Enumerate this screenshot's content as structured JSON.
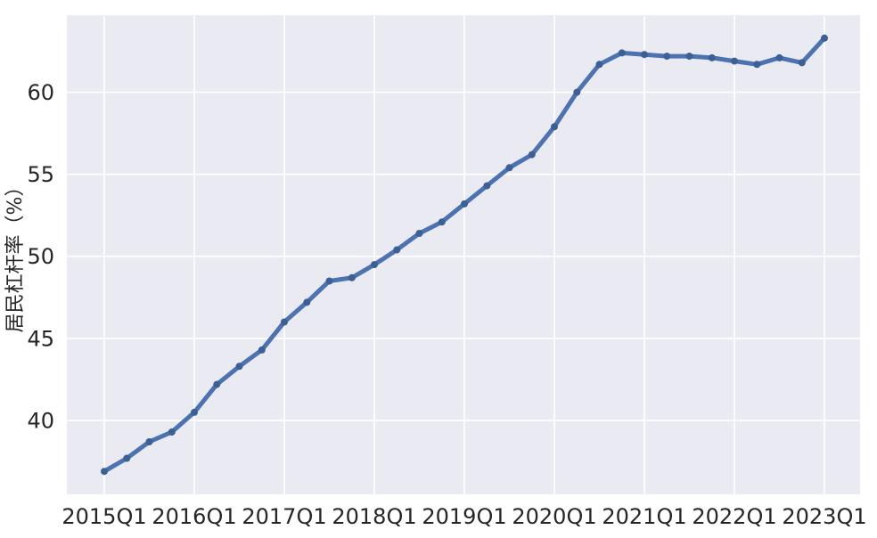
{
  "figure": {
    "background": "#ffffff",
    "plot_background": "#eaeaf2",
    "grid_color": "#ffffff",
    "text_color": "#262626"
  },
  "chart_data": {
    "type": "line",
    "title": "",
    "xlabel": "",
    "ylabel": "居民杠杆率（%）",
    "grid": true,
    "legend": "none",
    "ylim": [
      35.5,
      64.7
    ],
    "y_ticks": [
      40,
      45,
      50,
      55,
      60
    ],
    "x_tick_indices": [
      0,
      4,
      8,
      12,
      16,
      20,
      24,
      28,
      32
    ],
    "x_tick_labels": [
      "2015Q1",
      "2016Q1",
      "2017Q1",
      "2018Q1",
      "2019Q1",
      "2020Q1",
      "2021Q1",
      "2022Q1",
      "2023Q1"
    ],
    "categories": [
      "2015Q1",
      "2015Q2",
      "2015Q3",
      "2015Q4",
      "2016Q1",
      "2016Q2",
      "2016Q3",
      "2016Q4",
      "2017Q1",
      "2017Q2",
      "2017Q3",
      "2017Q4",
      "2018Q1",
      "2018Q2",
      "2018Q3",
      "2018Q4",
      "2019Q1",
      "2019Q2",
      "2019Q3",
      "2019Q4",
      "2020Q1",
      "2020Q2",
      "2020Q3",
      "2020Q4",
      "2021Q1",
      "2021Q2",
      "2021Q3",
      "2021Q4",
      "2022Q1",
      "2022Q2",
      "2022Q3",
      "2022Q4",
      "2023Q1"
    ],
    "series": [
      {
        "name": "居民杠杆率",
        "color": "#4c72b0",
        "marker_color": "#3d6094",
        "values": [
          36.9,
          37.7,
          38.7,
          39.3,
          40.5,
          42.2,
          43.3,
          44.3,
          46.0,
          47.2,
          48.5,
          48.7,
          49.5,
          50.4,
          51.4,
          52.1,
          53.2,
          54.3,
          55.4,
          56.2,
          57.9,
          60.0,
          61.7,
          62.4,
          62.3,
          62.2,
          62.2,
          62.1,
          61.9,
          61.7,
          62.1,
          61.8,
          63.3
        ]
      }
    ]
  }
}
